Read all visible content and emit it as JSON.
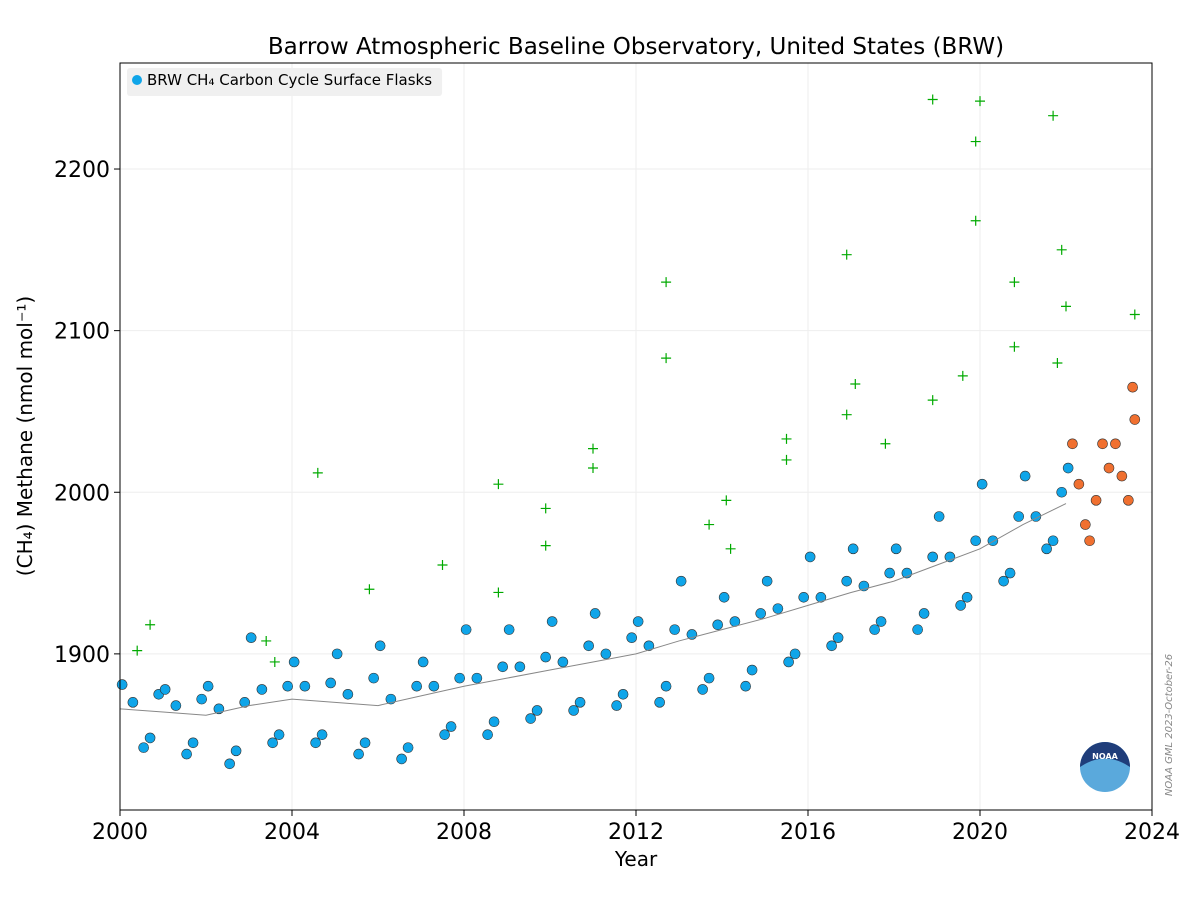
{
  "chart_data": {
    "type": "scatter",
    "title": "Barrow Atmospheric Baseline Observatory, United States (BRW)",
    "x_label": "Year",
    "y_label": "(CH₄) Methane (nmol mol⁻¹)",
    "annotation": "NOAA GML 2023-October-26",
    "xlim": [
      2000,
      2024
    ],
    "xticks": [
      2000,
      2004,
      2008,
      2012,
      2016,
      2020,
      2024
    ],
    "ylim": [
      1803.4,
      2265.6
    ],
    "yticks": [
      1900,
      2000,
      2100,
      2200
    ],
    "grid": true,
    "legend": "upper left",
    "series": [
      {
        "name": "BRW CH₄ Carbon Cycle Surface Flasks",
        "color": "#0fa5e9",
        "marker": "circle",
        "x": [
          2000.05,
          2000.3,
          2000.55,
          2000.7,
          2000.9,
          2001.05,
          2001.3,
          2001.55,
          2001.7,
          2001.9,
          2002.05,
          2002.3,
          2002.55,
          2002.7,
          2002.9,
          2003.05,
          2003.3,
          2003.55,
          2003.7,
          2003.9,
          2004.05,
          2004.3,
          2004.55,
          2004.7,
          2004.9,
          2005.05,
          2005.3,
          2005.55,
          2005.7,
          2005.9,
          2006.05,
          2006.3,
          2006.55,
          2006.7,
          2006.9,
          2007.05,
          2007.3,
          2007.55,
          2007.7,
          2007.9,
          2008.05,
          2008.3,
          2008.55,
          2008.7,
          2008.9,
          2009.05,
          2009.3,
          2009.55,
          2009.7,
          2009.9,
          2010.05,
          2010.3,
          2010.55,
          2010.7,
          2010.9,
          2011.05,
          2011.3,
          2011.55,
          2011.7,
          2011.9,
          2012.05,
          2012.3,
          2012.55,
          2012.7,
          2012.9,
          2013.05,
          2013.3,
          2013.55,
          2013.7,
          2013.9,
          2014.05,
          2014.3,
          2014.55,
          2014.7,
          2014.9,
          2015.05,
          2015.3,
          2015.55,
          2015.7,
          2015.9,
          2016.05,
          2016.3,
          2016.55,
          2016.7,
          2016.9,
          2017.05,
          2017.3,
          2017.55,
          2017.7,
          2017.9,
          2018.05,
          2018.3,
          2018.55,
          2018.7,
          2018.9,
          2019.05,
          2019.3,
          2019.55,
          2019.7,
          2019.9,
          2020.05,
          2020.3,
          2020.55,
          2020.7,
          2020.9,
          2021.05,
          2021.3,
          2021.55,
          2021.7,
          2021.9,
          2022.05
        ],
        "values": [
          1881,
          1870,
          1842,
          1848,
          1875,
          1878,
          1868,
          1838,
          1845,
          1872,
          1880,
          1866,
          1832,
          1840,
          1870,
          1910,
          1878,
          1845,
          1850,
          1880,
          1895,
          1880,
          1845,
          1850,
          1882,
          1900,
          1875,
          1838,
          1845,
          1885,
          1905,
          1872,
          1835,
          1842,
          1880,
          1895,
          1880,
          1850,
          1855,
          1885,
          1915,
          1885,
          1850,
          1858,
          1892,
          1915,
          1892,
          1860,
          1865,
          1898,
          1920,
          1895,
          1865,
          1870,
          1905,
          1925,
          1900,
          1868,
          1875,
          1910,
          1920,
          1905,
          1870,
          1880,
          1915,
          1945,
          1912,
          1878,
          1885,
          1918,
          1935,
          1920,
          1880,
          1890,
          1925,
          1945,
          1928,
          1895,
          1900,
          1935,
          1960,
          1935,
          1905,
          1910,
          1945,
          1965,
          1942,
          1915,
          1920,
          1950,
          1965,
          1950,
          1915,
          1925,
          1960,
          1985,
          1960,
          1930,
          1935,
          1970,
          2005,
          1970,
          1945,
          1950,
          1985,
          2010,
          1985,
          1965,
          1970,
          2000,
          2015
        ]
      },
      {
        "color": "#00aa00",
        "marker": "plus",
        "x": [
          2000.4,
          2000.7,
          2003.4,
          2003.6,
          2004.6,
          2005.8,
          2007.5,
          2008.8,
          2008.8,
          2009.9,
          2009.9,
          2011.0,
          2011.0,
          2012.7,
          2012.7,
          2013.7,
          2014.1,
          2014.2,
          2015.5,
          2015.5,
          2016.9,
          2016.9,
          2017.1,
          2017.8,
          2018.9,
          2018.9,
          2019.6,
          2019.9,
          2019.9,
          2020.0,
          2020.8,
          2020.8,
          2021.7,
          2021.9,
          2022.0,
          2021.8,
          2023.6
        ],
        "values": [
          1902,
          1918,
          1908,
          1895,
          2012,
          1940,
          1955,
          2005,
          1938,
          1990,
          1967,
          2027,
          2015,
          2130,
          2083,
          1980,
          1995,
          1965,
          2033,
          2020,
          2147,
          2048,
          2067,
          2030,
          2243,
          2057,
          2072,
          2217,
          2168,
          2242,
          2130,
          2090,
          2233,
          2150,
          2115,
          2080,
          2110
        ]
      },
      {
        "color": "#f07030",
        "marker": "circle",
        "x": [
          2022.15,
          2022.3,
          2022.45,
          2022.55,
          2022.7,
          2022.85,
          2023.0,
          2023.15,
          2023.3,
          2023.45,
          2023.55,
          2023.6
        ],
        "values": [
          2030,
          2005,
          1980,
          1970,
          1995,
          2030,
          2015,
          2030,
          2010,
          1995,
          2065,
          2045
        ]
      },
      {
        "color": "#888888",
        "marker": "line",
        "x": [
          2000,
          2001,
          2002,
          2003,
          2004,
          2005,
          2006,
          2007,
          2008,
          2009,
          2010,
          2011,
          2012,
          2013,
          2014,
          2015,
          2016,
          2017,
          2018,
          2019,
          2020,
          2021,
          2022
        ],
        "values": [
          1866,
          1864,
          1862,
          1868,
          1872,
          1870,
          1868,
          1874,
          1880,
          1885,
          1890,
          1895,
          1900,
          1908,
          1915,
          1922,
          1930,
          1938,
          1945,
          1955,
          1965,
          1980,
          1993
        ]
      }
    ]
  }
}
